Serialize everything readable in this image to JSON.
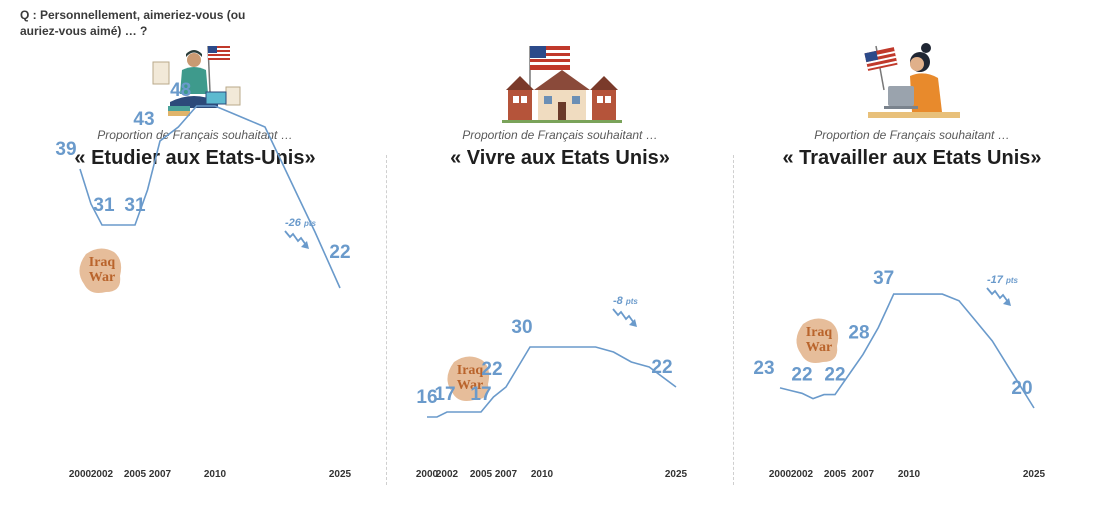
{
  "question": "Q : Personnellement, aimeriez-vous (ou auriez-vous aimé) … ?",
  "annotation_label": "Iraq War",
  "colors": {
    "line": "#6a9acb",
    "text": "#1f1f1f",
    "iraq_blob": "#e2b188",
    "iraq_text": "#b9642c"
  },
  "icons": [
    "student-with-flag-illustration",
    "houses-with-flag-illustration",
    "woman-at-laptop-with-flag-illustration"
  ],
  "chart_data": [
    {
      "type": "line",
      "subtitle": "Proportion de Français souhaitant …",
      "title": "« Etudier aux Etats-Unis»",
      "x": [
        2000,
        2001,
        2002,
        2003,
        2004,
        2005,
        2006,
        2007,
        2008,
        2009,
        2010,
        2012,
        2014,
        2016,
        2018,
        2020,
        2022,
        2025
      ],
      "y": [
        39,
        34,
        31,
        31,
        31,
        31,
        36,
        43,
        45,
        48,
        48,
        47,
        46,
        45,
        40,
        35,
        30,
        22
      ],
      "labels": [
        {
          "x": 2000,
          "y": 39,
          "text": "39"
        },
        {
          "x": 2002,
          "y": 31,
          "text": "31"
        },
        {
          "x": 2005,
          "y": 31,
          "text": "31"
        },
        {
          "x": 2007,
          "y": 43,
          "text": "43"
        },
        {
          "x": 2009,
          "y": 48,
          "text": "48"
        },
        {
          "x": 2025,
          "y": 22,
          "text": "22"
        }
      ],
      "x_ticks": [
        "2000",
        "2002",
        "2005",
        "2007",
        "2010",
        "2025"
      ],
      "change": "-26",
      "change_unit": "pts",
      "ylim": [
        10,
        50
      ]
    },
    {
      "type": "line",
      "subtitle": "Proportion de Français souhaitant …",
      "title": "« Vivre aux Etats Unis»",
      "x": [
        2000,
        2001,
        2002,
        2003,
        2004,
        2005,
        2006,
        2007,
        2008,
        2009,
        2010,
        2012,
        2014,
        2016,
        2018,
        2020,
        2022,
        2025
      ],
      "y": [
        16,
        16,
        17,
        17,
        17,
        17,
        20,
        22,
        26,
        30,
        30,
        30,
        30,
        30,
        29,
        27,
        26,
        22
      ],
      "labels": [
        {
          "x": 2000,
          "y": 16,
          "text": "16"
        },
        {
          "x": 2002,
          "y": 17,
          "text": "17"
        },
        {
          "x": 2005,
          "y": 17,
          "text": "17"
        },
        {
          "x": 2007,
          "y": 22,
          "text": "22"
        },
        {
          "x": 2009,
          "y": 30,
          "text": "30"
        },
        {
          "x": 2025,
          "y": 22,
          "text": "22"
        }
      ],
      "x_ticks": [
        "2000",
        "2002",
        "2005",
        "2007",
        "2010",
        "2025"
      ],
      "change": "-8",
      "change_unit": "pts",
      "ylim": [
        10,
        50
      ]
    },
    {
      "type": "line",
      "subtitle": "Proportion de Français souhaitant …",
      "title": "« Travailler aux Etats Unis»",
      "x": [
        2000,
        2001,
        2002,
        2003,
        2004,
        2005,
        2006,
        2007,
        2008,
        2009,
        2010,
        2012,
        2014,
        2016,
        2018,
        2020,
        2022,
        2025
      ],
      "y": [
        23,
        22.6,
        22.2,
        21.4,
        22,
        22,
        25,
        28,
        32,
        37,
        37,
        37,
        37,
        36,
        33,
        30,
        26,
        20
      ],
      "labels": [
        {
          "x": 2000,
          "y": 23,
          "text": "23"
        },
        {
          "x": 2002,
          "y": 22,
          "text": "22"
        },
        {
          "x": 2005,
          "y": 22,
          "text": "22"
        },
        {
          "x": 2007,
          "y": 28,
          "text": "28"
        },
        {
          "x": 2009,
          "y": 37,
          "text": "37"
        },
        {
          "x": 2025,
          "y": 20,
          "text": "20"
        }
      ],
      "x_ticks": [
        "2000",
        "2002",
        "2005",
        "2007",
        "2010",
        "2025"
      ],
      "change": "-17",
      "change_unit": "pts",
      "ylim": [
        10,
        40
      ]
    }
  ]
}
